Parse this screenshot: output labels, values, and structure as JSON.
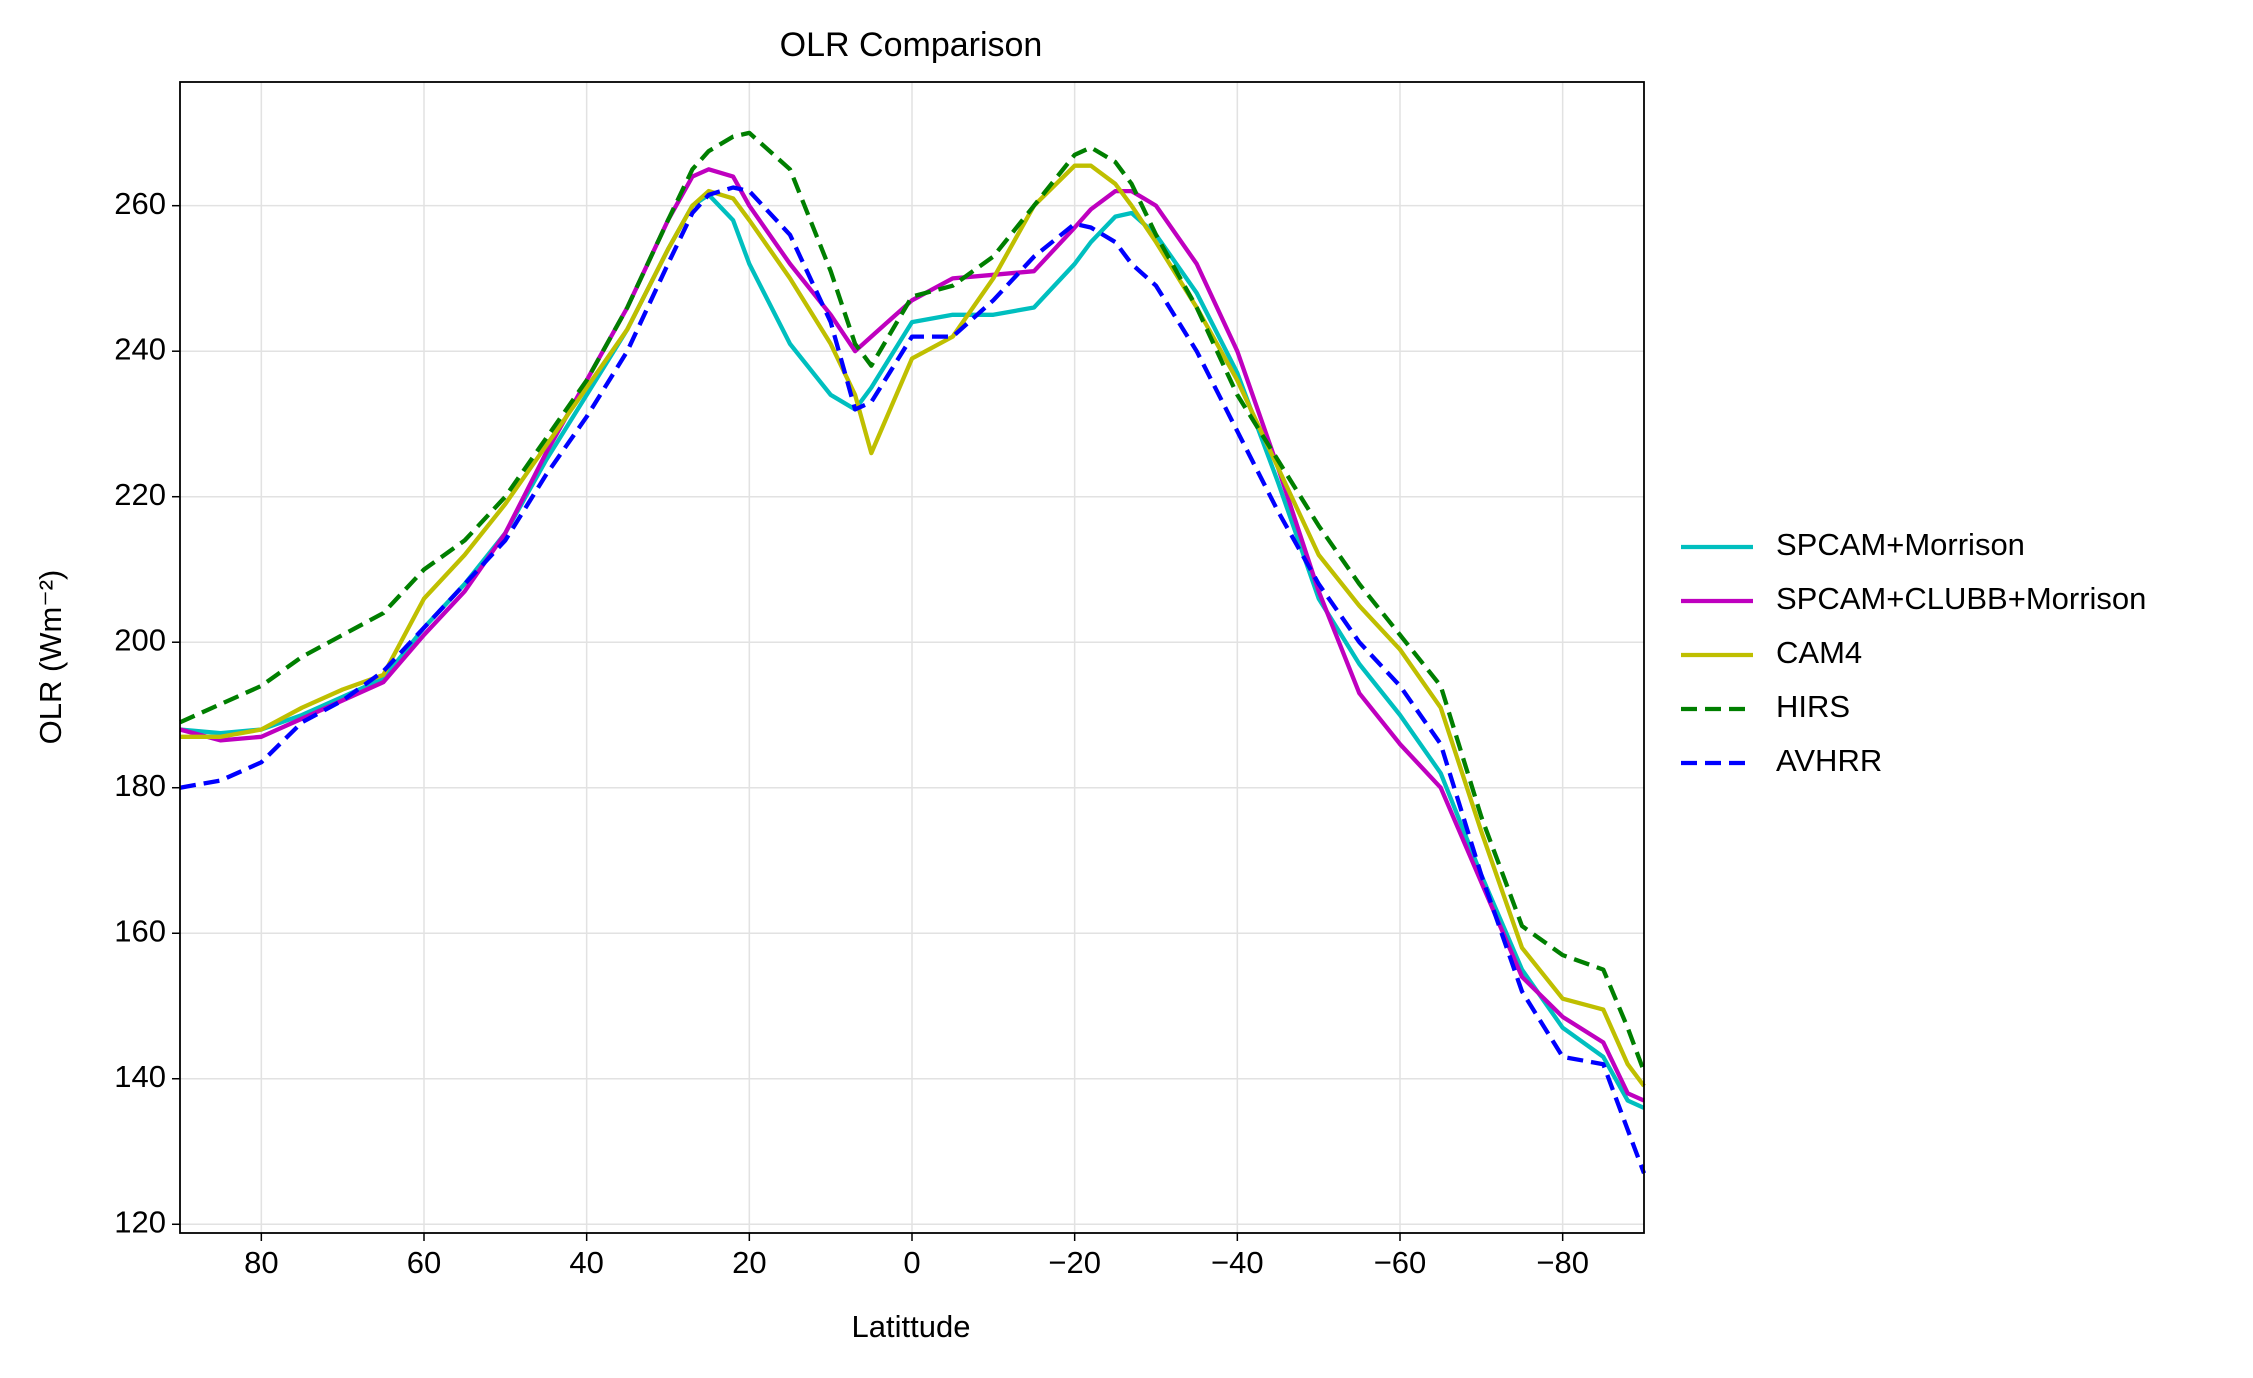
{
  "chart_data": {
    "type": "line",
    "title": "OLR Comparison",
    "x_label": "Latittude",
    "y_label": "OLR (Wm⁻²)",
    "x": [
      90,
      85,
      80,
      75,
      70,
      65,
      60,
      55,
      50,
      45,
      40,
      35,
      30,
      27,
      25,
      22,
      20,
      15,
      10,
      7,
      5,
      0,
      -5,
      -10,
      -15,
      -20,
      -22,
      -25,
      -27,
      -30,
      -35,
      -40,
      -45,
      -50,
      -55,
      -60,
      -65,
      -70,
      -75,
      -80,
      -85,
      -88,
      -90
    ],
    "series": [
      {
        "name": "SPCAM+Morrison",
        "color": "#00bfbf",
        "dash": false,
        "values": [
          188,
          187.5,
          188,
          190,
          192.5,
          195,
          202,
          208,
          215,
          225,
          234,
          243,
          254,
          260,
          261.5,
          258,
          252,
          241,
          234,
          232,
          235,
          244,
          245,
          245,
          246,
          252,
          255,
          258.5,
          259,
          256,
          248,
          237,
          222,
          206,
          197,
          190,
          182,
          168,
          155,
          147,
          143,
          137,
          136
        ]
      },
      {
        "name": "SPCAM+CLUBB+Morrison",
        "color": "#bf00bf",
        "dash": false,
        "values": [
          188,
          186.5,
          187,
          189.5,
          192,
          194.5,
          201,
          207,
          215,
          226,
          236,
          246,
          258,
          264,
          265,
          264,
          260,
          252,
          245,
          240,
          242,
          247,
          250,
          250.5,
          251,
          257,
          259.5,
          262,
          262,
          260,
          252,
          240,
          224,
          207,
          193,
          186,
          180,
          167,
          154,
          148.5,
          145,
          138,
          137
        ]
      },
      {
        "name": "CAM4",
        "color": "#bfbf00",
        "dash": false,
        "values": [
          187,
          187,
          188,
          191,
          193.5,
          195.5,
          206,
          212,
          219,
          227,
          235,
          243,
          254,
          260,
          262,
          261,
          258,
          250,
          241,
          234,
          226,
          239,
          242,
          250,
          260,
          265.5,
          265.5,
          263,
          260,
          255,
          246,
          236,
          224,
          212,
          205,
          199,
          191,
          174,
          158,
          151,
          149.5,
          142,
          139
        ]
      },
      {
        "name": "HIRS",
        "color": "#007f00",
        "dash": true,
        "values": [
          189,
          191.5,
          194,
          198,
          201,
          204,
          210,
          214,
          220,
          228,
          236,
          246,
          258,
          265,
          267.5,
          269.5,
          270,
          265,
          251,
          241,
          238,
          247.5,
          249,
          253,
          260,
          267,
          268,
          266,
          263,
          256,
          246,
          234,
          225,
          216,
          208,
          201,
          194,
          176,
          161,
          157,
          155,
          147,
          141
        ]
      },
      {
        "name": "AVHRR",
        "color": "#0000ff",
        "dash": true,
        "values": [
          180,
          181,
          183.5,
          189,
          192,
          196,
          202,
          208,
          214,
          223,
          231,
          240,
          252,
          259,
          261.5,
          262.5,
          262,
          256,
          244,
          232,
          233,
          242,
          242,
          247,
          253,
          257.5,
          257,
          255,
          252,
          249,
          240,
          229,
          218,
          208,
          200,
          194,
          186,
          168,
          152,
          143,
          142,
          133,
          127
        ]
      }
    ],
    "xlim": [
      90,
      -90
    ],
    "ylim": [
      118.8,
      277
    ],
    "xticks": [
      80,
      60,
      40,
      20,
      0,
      {
        "value": -20,
        "label": "−20"
      },
      {
        "value": -40,
        "label": "−40"
      },
      {
        "value": -60,
        "label": "−60"
      },
      {
        "value": -80,
        "label": "−80"
      }
    ],
    "yticks": [
      120,
      140,
      160,
      180,
      200,
      220,
      240,
      260
    ],
    "grid": true,
    "legend": "outside right"
  }
}
